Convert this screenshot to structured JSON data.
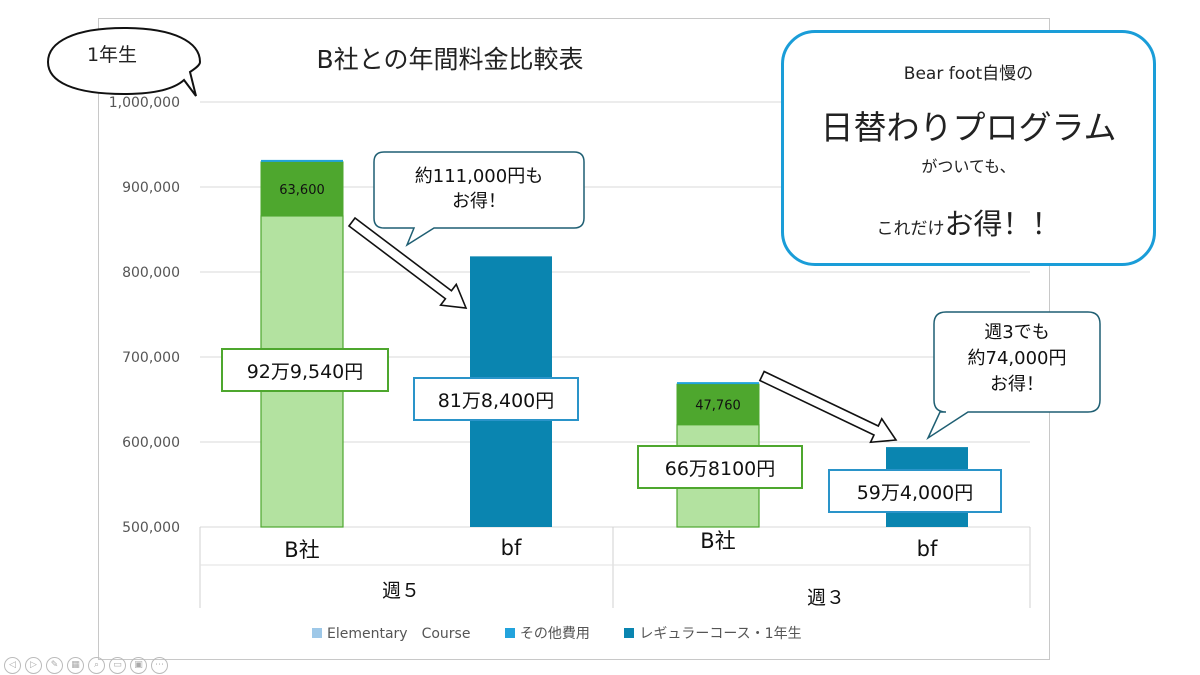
{
  "grade_label": "1年生",
  "chart_data": {
    "type": "bar",
    "title": "B社との年間料金比較表",
    "ylim": [
      500000,
      1000000
    ],
    "yticks": [
      "500,000",
      "600,000",
      "700,000",
      "800,000",
      "900,000",
      "1,000,000"
    ],
    "groups": [
      "週５",
      "週３"
    ],
    "categories": [
      "B社",
      "bf",
      "B社",
      "bf"
    ],
    "bars": [
      {
        "group": "週５",
        "category": "B社",
        "total": 929540,
        "total_label": "92万9,540円",
        "top_segment": 63600,
        "top_segment_label": "63,600"
      },
      {
        "group": "週５",
        "category": "bf",
        "total": 818400,
        "total_label": "81万8,400円"
      },
      {
        "group": "週３",
        "category": "B社",
        "total": 668100,
        "total_label": "66万8100円",
        "top_segment": 47760,
        "top_segment_label": "47,760"
      },
      {
        "group": "週３",
        "category": "bf",
        "total": 594000,
        "total_label": "59万4,000円"
      }
    ],
    "legend": [
      "Elementary　Course",
      "その他費用",
      "レギュラーコース・1年生"
    ],
    "legend_position": "bottom",
    "annotations": [
      {
        "line1": "約111,000円も",
        "line2": "お得！"
      },
      {
        "line1": "週3でも",
        "line2": "約74,000円",
        "line3": "お得！"
      }
    ]
  },
  "promo": {
    "line1": "Bear foot自慢の",
    "line2": "日替わりプログラム",
    "line3": "がついても、",
    "line4_small": "これだけ",
    "line4_big": "お得！！"
  },
  "colors": {
    "bsha_base": "#b3e2a0",
    "bsha_top": "#4ea72e",
    "bf_bar": "#0a85b0",
    "label_green_border": "#4ea72e",
    "label_blue_border": "#2a94c9",
    "promo_border": "#1a9dd8",
    "callout_border": "#1f5f73",
    "legend_1": "#9ec8e8",
    "legend_2": "#22a3dc",
    "legend_3": "#0a85b0"
  }
}
